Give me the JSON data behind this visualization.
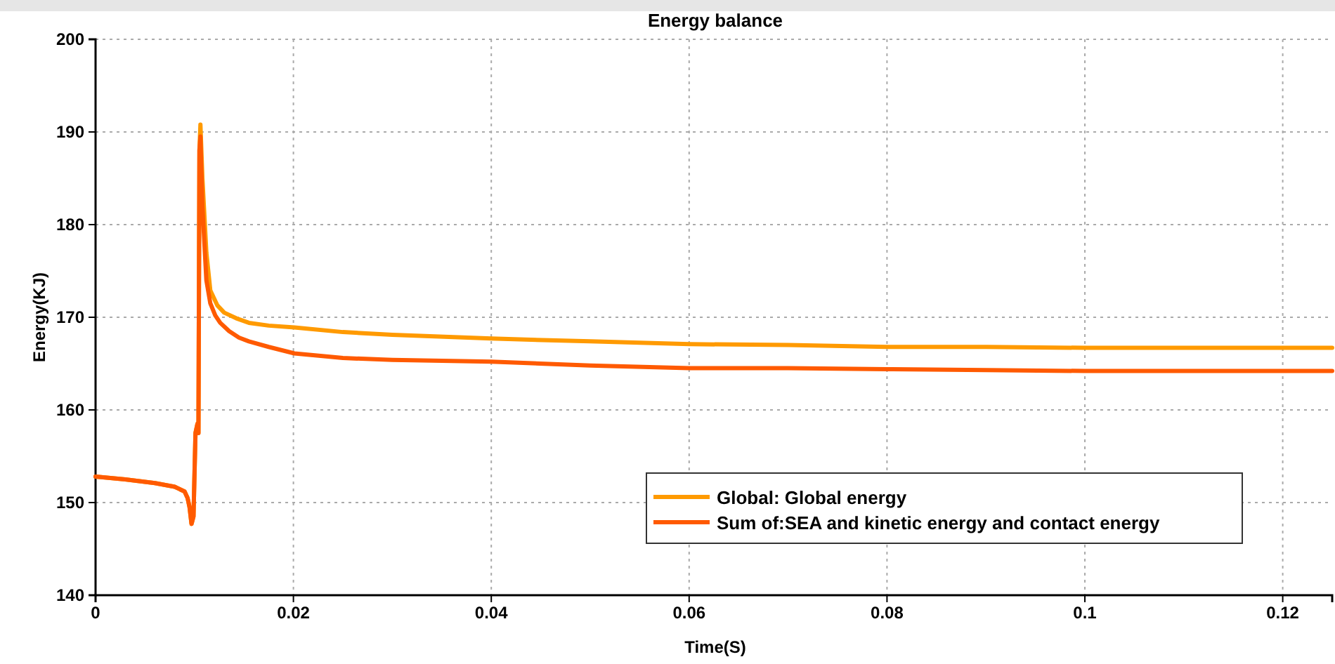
{
  "chart_data": {
    "type": "line",
    "title": "Energy balance",
    "xlabel": "Time(S)",
    "ylabel": "Energy(KJ)",
    "xlim": [
      0,
      0.125
    ],
    "xticks": [
      0,
      0.02,
      0.04,
      0.06,
      0.08,
      0.1,
      0.12
    ],
    "ylim": [
      140,
      200
    ],
    "yticks": [
      140,
      150,
      160,
      170,
      180,
      190,
      200
    ],
    "grid": true,
    "legend": "bottom right",
    "line_style": "solid",
    "marker": "none",
    "series": [
      {
        "name": "Global: Global energy",
        "color": "#ff9a00",
        "x": [
          0,
          0.003,
          0.006,
          0.008,
          0.009,
          0.0093,
          0.0095,
          0.0097,
          0.0099,
          0.0101,
          0.0103,
          0.0104,
          0.0105,
          0.0106,
          0.0108,
          0.0112,
          0.0116,
          0.0123,
          0.013,
          0.0142,
          0.0155,
          0.0175,
          0.0201,
          0.025,
          0.03,
          0.04,
          0.05,
          0.06,
          0.07,
          0.08,
          0.09,
          0.1,
          0.11,
          0.125
        ],
        "values": [
          152.8,
          152.5,
          152.1,
          151.7,
          151.2,
          150.5,
          149.5,
          147.7,
          148.5,
          157.5,
          158.5,
          157.5,
          188,
          190.8,
          185,
          177,
          172.9,
          171.3,
          170.5,
          169.9,
          169.4,
          169.1,
          168.9,
          168.4,
          168.1,
          167.7,
          167.4,
          167.1,
          167,
          166.8,
          166.8,
          166.7,
          166.7,
          166.7
        ]
      },
      {
        "name": "Sum of:SEA and  kinetic energy and contact energy",
        "color": "#ff5a00",
        "x": [
          0,
          0.003,
          0.006,
          0.008,
          0.009,
          0.0093,
          0.0095,
          0.0097,
          0.0099,
          0.0101,
          0.0103,
          0.0104,
          0.0105,
          0.0106,
          0.0108,
          0.0112,
          0.0116,
          0.0121,
          0.0126,
          0.0135,
          0.0145,
          0.0155,
          0.0175,
          0.0201,
          0.025,
          0.03,
          0.04,
          0.05,
          0.06,
          0.07,
          0.08,
          0.09,
          0.1,
          0.11,
          0.125
        ],
        "values": [
          152.8,
          152.5,
          152.1,
          151.7,
          151.2,
          150.5,
          149.5,
          147.7,
          148.5,
          157.5,
          158.5,
          157.5,
          188,
          189.5,
          182,
          174,
          171.5,
          170.2,
          169.4,
          168.5,
          167.8,
          167.4,
          166.8,
          166.1,
          165.6,
          165.4,
          165.2,
          164.8,
          164.5,
          164.5,
          164.4,
          164.3,
          164.2,
          164.2,
          164.2
        ]
      }
    ]
  }
}
